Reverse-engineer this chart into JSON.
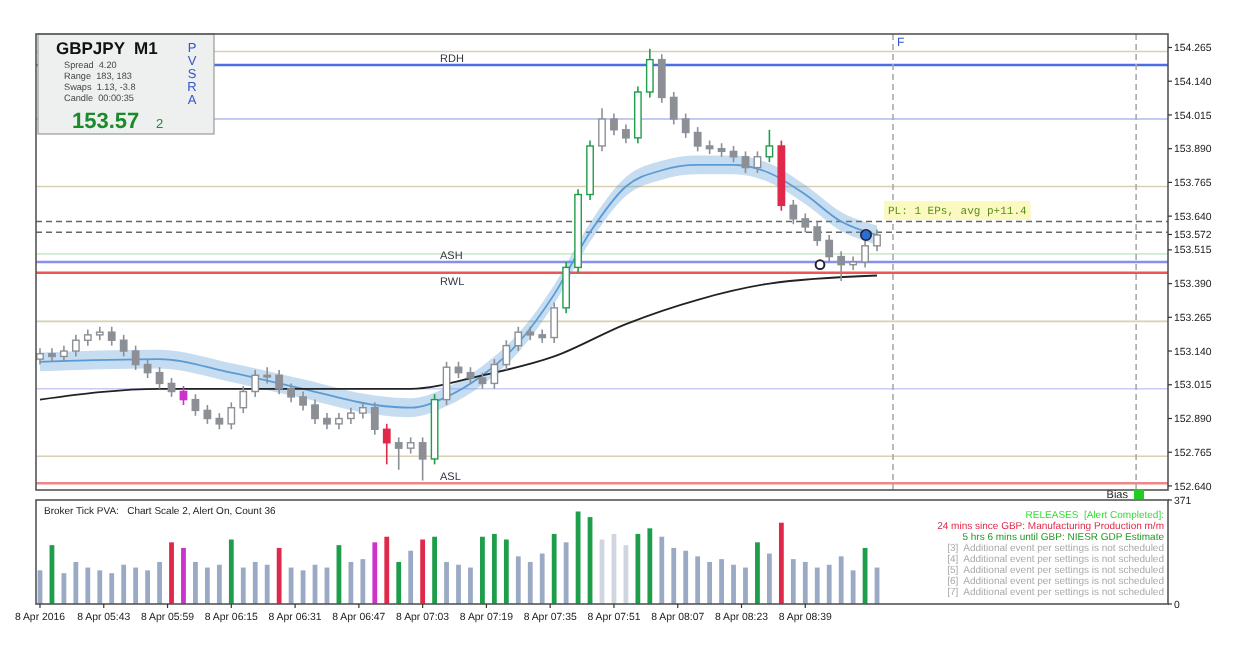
{
  "chart_data": [
    {
      "type": "candlestick",
      "tick_labels": "y",
      "xlim": [
        "2016-04-08T05:26",
        "2016-04-08T10:10"
      ],
      "ylim": [
        152.625,
        154.315
      ],
      "yticks": [
        154.265,
        {
          "value": 154.14,
          "label": "154.140"
        },
        154.015,
        {
          "value": 153.89,
          "label": "153.890"
        },
        153.765,
        {
          "value": 153.64,
          "label": "153.640"
        },
        153.572,
        153.515,
        {
          "value": 153.39,
          "label": "153.390"
        },
        153.265,
        {
          "value": 153.14,
          "label": "153.140"
        },
        153.015,
        {
          "value": 152.89,
          "label": "152.890"
        },
        152.765,
        {
          "value": 152.64,
          "label": "152.640"
        }
      ],
      "x": [
        "2016-04-08T05:27",
        "2016-04-08T05:30",
        "2016-04-08T05:33",
        "2016-04-08T05:36",
        "2016-04-08T05:39",
        "2016-04-08T05:42",
        "2016-04-08T05:45",
        "2016-04-08T05:48",
        "2016-04-08T05:51",
        "2016-04-08T05:54",
        "2016-04-08T05:57",
        "2016-04-08T06:00",
        "2016-04-08T06:03",
        "2016-04-08T06:06",
        "2016-04-08T06:09",
        "2016-04-08T06:12",
        "2016-04-08T06:15",
        "2016-04-08T06:18",
        "2016-04-08T06:21",
        "2016-04-08T06:24",
        "2016-04-08T06:27",
        "2016-04-08T06:30",
        "2016-04-08T06:33",
        "2016-04-08T06:36",
        "2016-04-08T06:39",
        "2016-04-08T06:42",
        "2016-04-08T06:45",
        "2016-04-08T06:48",
        "2016-04-08T06:51",
        "2016-04-08T06:54",
        "2016-04-08T06:57",
        "2016-04-08T07:00",
        "2016-04-08T07:03",
        "2016-04-08T07:06",
        "2016-04-08T07:09",
        "2016-04-08T07:12",
        "2016-04-08T07:15",
        "2016-04-08T07:18",
        "2016-04-08T07:21",
        "2016-04-08T07:24",
        "2016-04-08T07:27",
        "2016-04-08T07:30",
        "2016-04-08T07:33",
        "2016-04-08T07:36",
        "2016-04-08T07:39",
        "2016-04-08T07:42",
        "2016-04-08T07:45",
        "2016-04-08T07:48",
        "2016-04-08T07:51",
        "2016-04-08T07:54",
        "2016-04-08T07:57",
        "2016-04-08T08:00",
        "2016-04-08T08:03",
        "2016-04-08T08:06",
        "2016-04-08T08:09",
        "2016-04-08T08:12",
        "2016-04-08T08:15",
        "2016-04-08T08:18",
        "2016-04-08T08:21",
        "2016-04-08T08:24",
        "2016-04-08T08:27",
        "2016-04-08T08:30",
        "2016-04-08T08:33",
        "2016-04-08T08:36",
        "2016-04-08T08:39",
        "2016-04-08T08:42",
        "2016-04-08T08:45",
        "2016-04-08T08:48",
        "2016-04-08T08:51",
        "2016-04-08T08:54",
        "2016-04-08T08:57"
      ],
      "ohlc": [
        [
          153.11,
          153.15,
          153.09,
          153.13
        ],
        [
          153.13,
          153.15,
          153.1,
          153.12
        ],
        [
          153.12,
          153.16,
          153.1,
          153.14
        ],
        [
          153.14,
          153.2,
          153.12,
          153.18
        ],
        [
          153.18,
          153.22,
          153.16,
          153.2
        ],
        [
          153.2,
          153.23,
          153.18,
          153.21
        ],
        [
          153.21,
          153.23,
          153.16,
          153.18
        ],
        [
          153.18,
          153.2,
          153.12,
          153.14
        ],
        [
          153.14,
          153.16,
          153.07,
          153.09
        ],
        [
          153.09,
          153.11,
          153.04,
          153.06
        ],
        [
          153.06,
          153.08,
          153.0,
          153.02
        ],
        [
          153.02,
          153.04,
          152.97,
          152.99
        ],
        [
          152.99,
          153.01,
          152.94,
          152.96
        ],
        [
          152.96,
          152.98,
          152.9,
          152.92
        ],
        [
          152.92,
          152.94,
          152.87,
          152.89
        ],
        [
          152.89,
          152.91,
          152.85,
          152.87
        ],
        [
          152.87,
          152.95,
          152.85,
          152.93
        ],
        [
          152.93,
          153.01,
          152.91,
          152.99
        ],
        [
          152.99,
          153.07,
          152.97,
          153.05
        ],
        [
          153.05,
          153.08,
          153.02,
          153.05
        ],
        [
          153.05,
          153.07,
          152.98,
          153.0
        ],
        [
          153.0,
          153.02,
          152.95,
          152.97
        ],
        [
          152.97,
          152.99,
          152.92,
          152.94
        ],
        [
          152.94,
          152.96,
          152.87,
          152.89
        ],
        [
          152.89,
          152.91,
          152.85,
          152.87
        ],
        [
          152.87,
          152.91,
          152.85,
          152.89
        ],
        [
          152.89,
          152.93,
          152.87,
          152.91
        ],
        [
          152.91,
          152.95,
          152.89,
          152.93
        ],
        [
          152.93,
          152.95,
          152.83,
          152.85
        ],
        [
          152.85,
          152.87,
          152.72,
          152.8
        ],
        [
          152.8,
          152.82,
          152.7,
          152.78
        ],
        [
          152.78,
          152.82,
          152.76,
          152.8
        ],
        [
          152.8,
          152.82,
          152.66,
          152.74
        ],
        [
          152.74,
          152.98,
          152.72,
          152.96
        ],
        [
          152.96,
          153.1,
          152.94,
          153.08
        ],
        [
          153.08,
          153.1,
          153.04,
          153.06
        ],
        [
          153.06,
          153.08,
          153.02,
          153.04
        ],
        [
          153.04,
          153.06,
          153.0,
          153.02
        ],
        [
          153.02,
          153.11,
          153.0,
          153.09
        ],
        [
          153.09,
          153.18,
          153.07,
          153.16
        ],
        [
          153.16,
          153.23,
          153.14,
          153.21
        ],
        [
          153.21,
          153.23,
          153.18,
          153.2
        ],
        [
          153.2,
          153.22,
          153.17,
          153.19
        ],
        [
          153.19,
          153.32,
          153.17,
          153.3
        ],
        [
          153.3,
          153.47,
          153.28,
          153.45
        ],
        [
          153.45,
          153.74,
          153.43,
          153.72
        ],
        [
          153.72,
          153.92,
          153.7,
          153.9
        ],
        [
          153.9,
          154.04,
          153.88,
          154.0
        ],
        [
          154.0,
          154.02,
          153.94,
          153.96
        ],
        [
          153.96,
          153.98,
          153.91,
          153.93
        ],
        [
          153.93,
          154.12,
          153.91,
          154.1
        ],
        [
          154.1,
          154.26,
          154.08,
          154.22
        ],
        [
          154.22,
          154.24,
          154.06,
          154.08
        ],
        [
          154.08,
          154.1,
          153.98,
          154.0
        ],
        [
          154.0,
          154.02,
          153.93,
          153.95
        ],
        [
          153.95,
          153.97,
          153.88,
          153.9
        ],
        [
          153.9,
          153.92,
          153.87,
          153.89
        ],
        [
          153.89,
          153.91,
          153.86,
          153.88
        ],
        [
          153.88,
          153.9,
          153.84,
          153.86
        ],
        [
          153.86,
          153.88,
          153.8,
          153.82
        ],
        [
          153.82,
          153.88,
          153.8,
          153.86
        ],
        [
          153.86,
          153.96,
          153.84,
          153.9
        ],
        [
          153.9,
          153.92,
          153.66,
          153.68
        ],
        [
          153.68,
          153.7,
          153.61,
          153.63
        ],
        [
          153.63,
          153.65,
          153.58,
          153.6
        ],
        [
          153.6,
          153.62,
          153.53,
          153.55
        ],
        [
          153.55,
          153.57,
          153.47,
          153.49
        ],
        [
          153.49,
          153.51,
          153.4,
          153.46
        ],
        [
          153.46,
          153.49,
          153.44,
          153.47
        ],
        [
          153.47,
          153.55,
          153.45,
          153.53
        ],
        [
          153.53,
          153.59,
          153.51,
          153.57
        ]
      ],
      "colors": [
        "#8c9096",
        "#8c9096",
        "#8c9096",
        "#8c9096",
        "#8c9096",
        "#8c9096",
        "#8c9096",
        "#8c9096",
        "#8c9096",
        "#8c9096",
        "#8c9096",
        "#8c9096",
        "#cc33cc",
        "#8c9096",
        "#8c9096",
        "#8c9096",
        "#8c9096",
        "#8c9096",
        "#8c9096",
        "#8c9096",
        "#8c9096",
        "#8c9096",
        "#8c9096",
        "#8c9096",
        "#8c9096",
        "#8c9096",
        "#8c9096",
        "#8c9096",
        "#8c9096",
        "#e0284a",
        "#8c9096",
        "#8c9096",
        "#8c9096",
        "#1e9e4a",
        "#8c9096",
        "#8c9096",
        "#8c9096",
        "#8c9096",
        "#8c9096",
        "#8c9096",
        "#8c9096",
        "#8c9096",
        "#8c9096",
        "#8c9096",
        "#1e9e4a",
        "#1e9e4a",
        "#1e9e4a",
        "#8c9096",
        "#8c9096",
        "#8c9096",
        "#1e9e4a",
        "#1e9e4a",
        "#8c9096",
        "#8c9096",
        "#8c9096",
        "#8c9096",
        "#8c9096",
        "#8c9096",
        "#8c9096",
        "#8c9096",
        "#8c9096",
        "#1e9e4a",
        "#e0284a",
        "#8c9096",
        "#8c9096",
        "#8c9096",
        "#8c9096",
        "#8c9096",
        "#8c9096",
        "#8c9096",
        "#8c9096"
      ],
      "series": [
        {
          "type": "line",
          "color": "#5b9bd5",
          "x": [
            "2016-04-08T05:27",
            "2016-04-08T05:57",
            "2016-04-08T06:15",
            "2016-04-08T06:33",
            "2016-04-08T06:51",
            "2016-04-08T07:00",
            "2016-04-08T07:09",
            "2016-04-08T07:18",
            "2016-04-08T07:27",
            "2016-04-08T07:36",
            "2016-04-08T07:45",
            "2016-04-08T07:54",
            "2016-04-08T08:03",
            "2016-04-08T08:12",
            "2016-04-08T08:21",
            "2016-04-08T08:30",
            "2016-04-08T08:39",
            "2016-04-08T08:48",
            "2016-04-08T08:57"
          ],
          "values": [
            153.1,
            153.11,
            153.06,
            153.0,
            152.94,
            152.93,
            152.97,
            153.05,
            153.17,
            153.35,
            153.58,
            153.75,
            153.81,
            153.83,
            153.83,
            153.8,
            153.72,
            153.62,
            153.57
          ],
          "lower": [
            153.065,
            153.075,
            153.025,
            152.965,
            152.905,
            152.895,
            152.935,
            153.015,
            153.135,
            153.315,
            153.545,
            153.715,
            153.775,
            153.795,
            153.795,
            153.765,
            153.685,
            153.585,
            153.535
          ],
          "upper": [
            153.135,
            153.145,
            153.095,
            153.035,
            152.975,
            152.965,
            153.005,
            153.085,
            153.205,
            153.385,
            153.615,
            153.785,
            153.845,
            153.865,
            153.865,
            153.835,
            153.755,
            153.655,
            153.605
          ]
        },
        {
          "type": "line",
          "color": "#222222",
          "x": [
            "2016-04-08T05:27",
            "2016-04-08T05:57",
            "2016-04-08T06:30",
            "2016-04-08T07:00",
            "2016-04-08T07:18",
            "2016-04-08T07:36",
            "2016-04-08T07:54",
            "2016-04-08T08:12",
            "2016-04-08T08:30",
            "2016-04-08T08:57"
          ],
          "values": [
            152.96,
            153.0,
            153.0,
            153.0,
            153.05,
            153.12,
            153.24,
            153.33,
            153.39,
            153.42
          ]
        }
      ],
      "ref_lines": [
        {
          "axis": "y",
          "value": 154.25,
          "color": "#d8d0b0"
        },
        {
          "axis": "y",
          "value": 154.2,
          "label": "RDH",
          "color": "#4a6fe0"
        },
        {
          "axis": "y",
          "value": 154.0,
          "color": "#b0b8f0"
        },
        {
          "axis": "y",
          "value": 153.75,
          "color": "#d8d0b0"
        },
        {
          "axis": "y",
          "value": 153.62,
          "color": "#666666",
          "line_style": "dashed"
        },
        {
          "axis": "y",
          "value": 153.58,
          "color": "#666666",
          "line_style": "dashed"
        },
        {
          "axis": "y",
          "value": 153.5,
          "color": "#cdeccd"
        },
        {
          "axis": "y",
          "value": 153.47,
          "label": "ASH",
          "color": "#8890ee"
        },
        {
          "axis": "y",
          "value": 153.43,
          "label": "RWL",
          "color": "#ee5555"
        },
        {
          "axis": "y",
          "value": 153.25,
          "color": "#d8d0b0"
        },
        {
          "axis": "y",
          "value": 153.0,
          "color": "#c8ccf4"
        },
        {
          "axis": "y",
          "value": 152.75,
          "color": "#d8d0b0"
        },
        {
          "axis": "y",
          "value": 152.65,
          "label": "ASL",
          "color": "#ee8888"
        },
        {
          "axis": "x",
          "value": "2016-04-08T09:01",
          "label": "F",
          "color": "#aaaaaa",
          "line_style": "dashed"
        },
        {
          "axis": "x",
          "value": "2016-04-08T10:02",
          "color": "#aaaaaa",
          "line_style": "dashed"
        }
      ],
      "annotations": [
        "GBPJPY  M1",
        "Spread  4.20",
        "Range  183, 183",
        "Swaps  1.13, -3.8",
        "Candle  00:00:35",
        "153.57",
        "2",
        "PVSRA",
        "PL: 1 EPs, avg p+11.4"
      ]
    },
    {
      "type": "bar",
      "xlim": [
        "2016-04-08T05:26",
        "2016-04-08T10:10"
      ],
      "xticks": [
        {
          "value": "2016-04-08T05:27",
          "label": "8 Apr 2016"
        },
        {
          "value": "2016-04-08T05:43",
          "label": "8 Apr 05:43"
        },
        {
          "value": "2016-04-08T05:59",
          "label": "8 Apr 05:59"
        },
        {
          "value": "2016-04-08T06:15",
          "label": "8 Apr 06:15"
        },
        {
          "value": "2016-04-08T06:31",
          "label": "8 Apr 06:31"
        },
        {
          "value": "2016-04-08T06:47",
          "label": "8 Apr 06:47"
        },
        {
          "value": "2016-04-08T07:03",
          "label": "8 Apr 07:03"
        },
        {
          "value": "2016-04-08T07:19",
          "label": "8 Apr 07:19"
        },
        {
          "value": "2016-04-08T07:35",
          "label": "8 Apr 07:35"
        },
        {
          "value": "2016-04-08T07:51",
          "label": "8 Apr 07:51"
        },
        {
          "value": "2016-04-08T08:07",
          "label": "8 Apr 08:07"
        },
        {
          "value": "2016-04-08T08:23",
          "label": "8 Apr 08:23"
        },
        {
          "value": "2016-04-08T08:39",
          "label": "8 Apr 08:39"
        }
      ],
      "ylim": [
        0,
        371
      ],
      "yticks": [
        0,
        371
      ],
      "x": [
        "2016-04-08T05:27",
        "2016-04-08T05:30",
        "2016-04-08T05:33",
        "2016-04-08T05:36",
        "2016-04-08T05:39",
        "2016-04-08T05:42",
        "2016-04-08T05:45",
        "2016-04-08T05:48",
        "2016-04-08T05:51",
        "2016-04-08T05:54",
        "2016-04-08T05:57",
        "2016-04-08T06:00",
        "2016-04-08T06:03",
        "2016-04-08T06:06",
        "2016-04-08T06:09",
        "2016-04-08T06:12",
        "2016-04-08T06:15",
        "2016-04-08T06:18",
        "2016-04-08T06:21",
        "2016-04-08T06:24",
        "2016-04-08T06:27",
        "2016-04-08T06:30",
        "2016-04-08T06:33",
        "2016-04-08T06:36",
        "2016-04-08T06:39",
        "2016-04-08T06:42",
        "2016-04-08T06:45",
        "2016-04-08T06:48",
        "2016-04-08T06:51",
        "2016-04-08T06:54",
        "2016-04-08T06:57",
        "2016-04-08T07:00",
        "2016-04-08T07:03",
        "2016-04-08T07:06",
        "2016-04-08T07:09",
        "2016-04-08T07:12",
        "2016-04-08T07:15",
        "2016-04-08T07:18",
        "2016-04-08T07:21",
        "2016-04-08T07:24",
        "2016-04-08T07:27",
        "2016-04-08T07:30",
        "2016-04-08T07:33",
        "2016-04-08T07:36",
        "2016-04-08T07:39",
        "2016-04-08T07:42",
        "2016-04-08T07:45",
        "2016-04-08T07:48",
        "2016-04-08T07:51",
        "2016-04-08T07:54",
        "2016-04-08T07:57",
        "2016-04-08T08:00",
        "2016-04-08T08:03",
        "2016-04-08T08:06",
        "2016-04-08T08:09",
        "2016-04-08T08:12",
        "2016-04-08T08:15",
        "2016-04-08T08:18",
        "2016-04-08T08:21",
        "2016-04-08T08:24",
        "2016-04-08T08:27",
        "2016-04-08T08:30",
        "2016-04-08T08:33",
        "2016-04-08T08:36",
        "2016-04-08T08:39",
        "2016-04-08T08:42",
        "2016-04-08T08:45",
        "2016-04-08T08:48",
        "2016-04-08T08:51",
        "2016-04-08T08:54",
        "2016-04-08T08:57"
      ],
      "values": [
        120,
        210,
        110,
        150,
        130,
        120,
        110,
        140,
        130,
        120,
        150,
        220,
        200,
        150,
        130,
        140,
        230,
        130,
        150,
        140,
        200,
        130,
        120,
        140,
        130,
        210,
        150,
        160,
        220,
        240,
        150,
        190,
        230,
        240,
        150,
        140,
        130,
        240,
        250,
        230,
        170,
        150,
        180,
        250,
        220,
        330,
        310,
        230,
        250,
        210,
        250,
        270,
        240,
        200,
        190,
        170,
        150,
        160,
        140,
        130,
        220,
        180,
        290,
        160,
        150,
        130,
        140,
        170,
        120,
        200,
        130
      ],
      "colors": [
        "#9aaac4",
        "#1e9e4a",
        "#9aaac4",
        "#9aaac4",
        "#9aaac4",
        "#9aaac4",
        "#9aaac4",
        "#9aaac4",
        "#9aaac4",
        "#9aaac4",
        "#9aaac4",
        "#e0284a",
        "#cc33cc",
        "#9aaac4",
        "#9aaac4",
        "#9aaac4",
        "#1e9e4a",
        "#9aaac4",
        "#9aaac4",
        "#9aaac4",
        "#e0284a",
        "#9aaac4",
        "#9aaac4",
        "#9aaac4",
        "#9aaac4",
        "#1e9e4a",
        "#9aaac4",
        "#9aaac4",
        "#cc33cc",
        "#e0284a",
        "#1e9e4a",
        "#9aaac4",
        "#e0284a",
        "#1e9e4a",
        "#9aaac4",
        "#9aaac4",
        "#9aaac4",
        "#1e9e4a",
        "#1e9e4a",
        "#1e9e4a",
        "#9aaac4",
        "#9aaac4",
        "#9aaac4",
        "#1e9e4a",
        "#9aaac4",
        "#1e9e4a",
        "#1e9e4a",
        "#d0d6e0",
        "#d0d6e0",
        "#d0d6e0",
        "#1e9e4a",
        "#1e9e4a",
        "#9aaac4",
        "#9aaac4",
        "#9aaac4",
        "#9aaac4",
        "#9aaac4",
        "#9aaac4",
        "#9aaac4",
        "#9aaac4",
        "#1e9e4a",
        "#9aaac4",
        "#e0284a",
        "#9aaac4",
        "#9aaac4",
        "#9aaac4",
        "#9aaac4",
        "#9aaac4",
        "#9aaac4",
        "#1e9e4a",
        "#9aaac4"
      ],
      "annotations": [
        "Broker Tick PVA:   Chart Scale 2, Alert On, Count 36",
        "Bias",
        "RELEASES  [Alert Completed]:",
        "24 mins since GBP: Manufacturing Production m/m",
        "5 hrs 6 mins until GBP: NIESR GDP Estimate",
        "[3]  Additional event per settings is not scheduled",
        "[4]  Additional event per settings is not scheduled",
        "[5]  Additional event per settings is not scheduled",
        "[6]  Additional event per settings is not scheduled",
        "[7]  Additional event per settings is not scheduled"
      ]
    }
  ]
}
